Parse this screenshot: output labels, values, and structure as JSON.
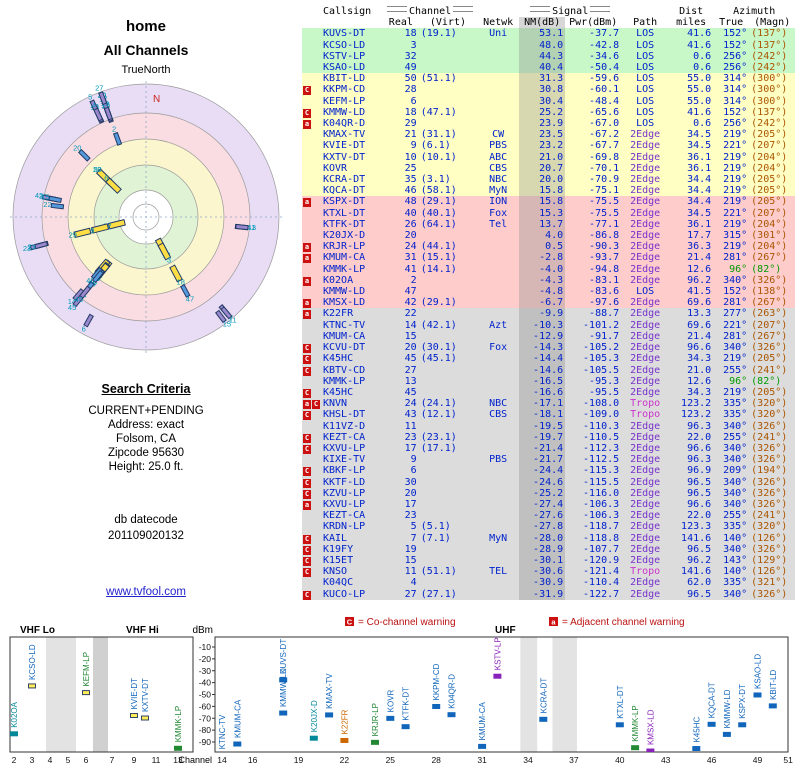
{
  "report": {
    "title": "home",
    "subtitle": "All Channels",
    "true_north": "TrueNorth",
    "north_symbol": "N"
  },
  "search_criteria": {
    "heading": "Search Criteria",
    "lines": [
      "CURRENT+PENDING",
      "Address: exact",
      "Folsom, CA",
      "Zipcode 95630",
      "Height: 25.0 ft."
    ],
    "db_label": "db datecode",
    "db_value": "201109020132"
  },
  "footer_link": "www.tvfool.com",
  "legend": {
    "co_symbol": "C",
    "co_text": "= Co-channel warning",
    "adj_symbol": "a",
    "adj_text": "= Adjacent channel warning"
  },
  "table": {
    "group_headers": {
      "channel": "Channel",
      "signal": "Signal",
      "dist": "Dist",
      "azimuth": "Azimuth"
    },
    "columns": [
      "Callsign",
      "Real",
      "(Virt)",
      "Netwk",
      "NM(dB)",
      "Pwr(dBm)",
      "Path",
      "miles",
      "True",
      "(Magn)"
    ],
    "rows": [
      [
        "",
        "KUVS-DT",
        "18",
        "(19.1)",
        "Uni",
        "53.1",
        "-37.7",
        "LOS",
        "41.6",
        "152°",
        "(137°)",
        "g"
      ],
      [
        "",
        "KCSO-LD",
        "3",
        "",
        "",
        "48.0",
        "-42.8",
        "LOS",
        "41.6",
        "152°",
        "(137°)",
        "g"
      ],
      [
        "",
        "KSTV-LP",
        "32",
        "",
        "",
        "44.3",
        "-34.6",
        "LOS",
        "0.6",
        "256°",
        "(242°)",
        "g"
      ],
      [
        "",
        "KSAO-LD",
        "49",
        "",
        "",
        "40.4",
        "-50.4",
        "LOS",
        "0.6",
        "256°",
        "(242°)",
        "g"
      ],
      [
        "",
        "KBIT-LD",
        "50",
        "(51.1)",
        "",
        "31.3",
        "-59.6",
        "LOS",
        "55.0",
        "314°",
        "(300°)",
        "y"
      ],
      [
        "C",
        "KKPM-CD",
        "28",
        "",
        "",
        "30.8",
        "-60.1",
        "LOS",
        "55.0",
        "314°",
        "(300°)",
        "y"
      ],
      [
        "",
        "KEFM-LP",
        "6",
        "",
        "",
        "30.4",
        "-48.4",
        "LOS",
        "55.0",
        "314°",
        "(300°)",
        "y"
      ],
      [
        "C",
        "KMMW-LD",
        "18",
        "(47.1)",
        "",
        "25.2",
        "-65.6",
        "LOS",
        "41.6",
        "152°",
        "(137°)",
        "y"
      ],
      [
        "a",
        "K04QR-D",
        "29",
        "",
        "",
        "23.9",
        "-67.0",
        "LOS",
        "0.6",
        "256°",
        "(242°)",
        "y"
      ],
      [
        "",
        "KMAX-TV",
        "21",
        "(31.1)",
        "CW",
        "23.5",
        "-67.2",
        "2Edge",
        "34.5",
        "219°",
        "(205°)",
        "y"
      ],
      [
        "",
        "KVIE-DT",
        "9",
        "(6.1)",
        "PBS",
        "23.2",
        "-67.7",
        "2Edge",
        "34.5",
        "221°",
        "(207°)",
        "y"
      ],
      [
        "",
        "KXTV-DT",
        "10",
        "(10.1)",
        "ABC",
        "21.0",
        "-69.8",
        "2Edge",
        "36.1",
        "219°",
        "(204°)",
        "y"
      ],
      [
        "",
        "KOVR",
        "25",
        "",
        "CBS",
        "20.7",
        "-70.1",
        "2Edge",
        "36.1",
        "219°",
        "(204°)",
        "y"
      ],
      [
        "",
        "KCRA-DT",
        "35",
        "(3.1)",
        "NBC",
        "20.0",
        "-70.9",
        "2Edge",
        "34.4",
        "219°",
        "(205°)",
        "y"
      ],
      [
        "",
        "KQCA-DT",
        "46",
        "(58.1)",
        "MyN",
        "15.8",
        "-75.1",
        "2Edge",
        "34.4",
        "219°",
        "(205°)",
        "y"
      ],
      [
        "a",
        "KSPX-DT",
        "48",
        "(29.1)",
        "ION",
        "15.8",
        "-75.5",
        "2Edge",
        "34.4",
        "219°",
        "(205°)",
        "p"
      ],
      [
        "",
        "KTXL-DT",
        "40",
        "(40.1)",
        "Fox",
        "15.3",
        "-75.5",
        "2Edge",
        "34.5",
        "221°",
        "(207°)",
        "p"
      ],
      [
        "",
        "KTFK-DT",
        "26",
        "(64.1)",
        "Tel",
        "13.7",
        "-77.1",
        "2Edge",
        "36.1",
        "219°",
        "(204°)",
        "p"
      ],
      [
        "",
        "K20JX-D",
        "20",
        "",
        "",
        "4.0",
        "-86.8",
        "2Edge",
        "17.7",
        "315°",
        "(301°)",
        "p"
      ],
      [
        "a",
        "KRJR-LP",
        "24",
        "(44.1)",
        "",
        "0.5",
        "-90.3",
        "2Edge",
        "36.3",
        "219°",
        "(204°)",
        "p"
      ],
      [
        "a",
        "KMUM-CA",
        "31",
        "(15.1)",
        "",
        "-2.8",
        "-93.7",
        "2Edge",
        "21.4",
        "281°",
        "(267°)",
        "p"
      ],
      [
        "",
        "KMMK-LP",
        "41",
        "(14.1)",
        "",
        "-4.0",
        "-94.8",
        "2Edge",
        "12.6",
        "96°",
        "(82°)",
        "p"
      ],
      [
        "a",
        "K02OA",
        "2",
        "",
        "",
        "-4.3",
        "-83.1",
        "2Edge",
        "96.2",
        "340°",
        "(326°)",
        "p"
      ],
      [
        "",
        "KMMW-LD",
        "47",
        "",
        "",
        "-4.8",
        "-83.6",
        "LOS",
        "41.5",
        "152°",
        "(138°)",
        "p"
      ],
      [
        "a",
        "KMSX-LD",
        "42",
        "(29.1)",
        "",
        "-6.7",
        "-97.6",
        "2Edge",
        "69.6",
        "281°",
        "(267°)",
        "p"
      ],
      [
        "a",
        "K22FR",
        "22",
        "",
        "",
        "-9.9",
        "-88.7",
        "2Edge",
        "13.3",
        "277°",
        "(263°)",
        "x"
      ],
      [
        "",
        "KTNC-TV",
        "14",
        "(42.1)",
        "Azt",
        "-10.3",
        "-101.2",
        "2Edge",
        "69.6",
        "221°",
        "(207°)",
        "x"
      ],
      [
        "",
        "KMUM-CA",
        "15",
        "",
        "",
        "-12.9",
        "-91.7",
        "2Edge",
        "21.4",
        "281°",
        "(267°)",
        "x"
      ],
      [
        "C",
        "KCVU-DT",
        "20",
        "(30.1)",
        "Fox",
        "-14.3",
        "-105.2",
        "2Edge",
        "96.6",
        "340°",
        "(326°)",
        "x"
      ],
      [
        "C",
        "K45HC",
        "45",
        "(45.1)",
        "",
        "-14.4",
        "-105.3",
        "2Edge",
        "34.3",
        "219°",
        "(205°)",
        "x"
      ],
      [
        "C",
        "KBTV-CD",
        "27",
        "",
        "",
        "-14.6",
        "-105.5",
        "2Edge",
        "21.0",
        "255°",
        "(241°)",
        "x"
      ],
      [
        "",
        "KMMK-LP",
        "13",
        "",
        "",
        "-16.5",
        "-95.3",
        "2Edge",
        "12.6",
        "96°",
        "(82°)",
        "x"
      ],
      [
        "C",
        "K45HC",
        "45",
        "",
        "",
        "-16.6",
        "-95.5",
        "2Edge",
        "34.3",
        "219°",
        "(205°)",
        "x"
      ],
      [
        "aC",
        "KNVN",
        "24",
        "(24.1)",
        "NBC",
        "-17.1",
        "-108.0",
        "Tropo",
        "123.2",
        "335°",
        "(320°)",
        "x"
      ],
      [
        "C",
        "KHSL-DT",
        "43",
        "(12.1)",
        "CBS",
        "-18.1",
        "-109.0",
        "Tropo",
        "123.2",
        "335°",
        "(320°)",
        "x"
      ],
      [
        "",
        "K11VZ-D",
        "11",
        "",
        "",
        "-19.5",
        "-110.3",
        "2Edge",
        "96.3",
        "340°",
        "(326°)",
        "x"
      ],
      [
        "C",
        "KEZT-CA",
        "23",
        "(23.1)",
        "",
        "-19.7",
        "-110.5",
        "2Edge",
        "22.0",
        "255°",
        "(241°)",
        "x"
      ],
      [
        "C",
        "KXVU-LP",
        "17",
        "(17.1)",
        "",
        "-21.4",
        "-112.3",
        "2Edge",
        "96.6",
        "340°",
        "(326°)",
        "x"
      ],
      [
        "",
        "KIXE-TV",
        "9",
        "",
        "PBS",
        "-21.7",
        "-112.5",
        "2Edge",
        "96.3",
        "340°",
        "(326°)",
        "x"
      ],
      [
        "C",
        "KBKF-LP",
        "6",
        "",
        "",
        "-24.4",
        "-115.3",
        "2Edge",
        "96.9",
        "209°",
        "(194°)",
        "x"
      ],
      [
        "C",
        "KKTF-LD",
        "30",
        "",
        "",
        "-24.6",
        "-115.5",
        "2Edge",
        "96.5",
        "340°",
        "(326°)",
        "x"
      ],
      [
        "C",
        "KZVU-LP",
        "20",
        "",
        "",
        "-25.2",
        "-116.0",
        "2Edge",
        "96.5",
        "340°",
        "(326°)",
        "x"
      ],
      [
        "a",
        "KXVU-LP",
        "17",
        "",
        "",
        "-27.4",
        "-106.3",
        "2Edge",
        "96.6",
        "340°",
        "(326°)",
        "x"
      ],
      [
        "",
        "KEZT-CA",
        "23",
        "",
        "",
        "-27.6",
        "-106.3",
        "2Edge",
        "22.0",
        "255°",
        "(241°)",
        "x"
      ],
      [
        "",
        "KRDN-LP",
        "5",
        "(5.1)",
        "",
        "-27.8",
        "-118.7",
        "2Edge",
        "123.3",
        "335°",
        "(320°)",
        "x"
      ],
      [
        "C",
        "KAIL",
        "7",
        "(7.1)",
        "MyN",
        "-28.0",
        "-118.8",
        "2Edge",
        "141.6",
        "140°",
        "(126°)",
        "x"
      ],
      [
        "C",
        "K19FY",
        "19",
        "",
        "",
        "-28.9",
        "-107.7",
        "2Edge",
        "96.5",
        "340°",
        "(326°)",
        "x"
      ],
      [
        "C",
        "K15ET",
        "15",
        "",
        "",
        "-30.1",
        "-120.9",
        "2Edge",
        "96.2",
        "143°",
        "(129°)",
        "x"
      ],
      [
        "C",
        "KNSO",
        "11",
        "(51.1)",
        "TEL",
        "-30.6",
        "-121.4",
        "Tropo",
        "141.6",
        "140°",
        "(126°)",
        "x"
      ],
      [
        "",
        "K04QC",
        "4",
        "",
        "",
        "-30.9",
        "-110.4",
        "2Edge",
        "62.0",
        "335°",
        "(321°)",
        "x"
      ],
      [
        "C",
        "KUCO-LP",
        "27",
        "(27.1)",
        "",
        "-31.9",
        "-122.7",
        "2Edge",
        "96.5",
        "340°",
        "(326°)",
        "x"
      ]
    ]
  },
  "chart_data": [
    {
      "type": "scatter-polar",
      "name": "azimuth-signal-radar",
      "title": "home - All Channels",
      "angle": "true azimuth degrees (N up, clockwise)",
      "radius": "signal power dBm, stronger toward center",
      "rings": [
        {
          "r": 133,
          "fill": "#e9dcf5"
        },
        {
          "r": 104,
          "fill": "#fadde2"
        },
        {
          "r": 78,
          "fill": "#fbf6cd"
        },
        {
          "r": 52,
          "fill": "#e1f3d5"
        },
        {
          "r": 27,
          "fill": "#ffffff"
        },
        {
          "r": 13,
          "fill": "none"
        }
      ],
      "points": [
        [
          18,
          152,
          -37.7
        ],
        [
          3,
          152,
          -42.8
        ],
        [
          32,
          256,
          -34.6
        ],
        [
          49,
          256,
          -50.4
        ],
        [
          50,
          314,
          -59.6
        ],
        [
          28,
          314,
          -60.1
        ],
        [
          6,
          314,
          -48.4
        ],
        [
          18,
          152,
          -65.6
        ],
        [
          29,
          256,
          -67.0
        ],
        [
          21,
          219,
          -67.2
        ],
        [
          9,
          221,
          -67.7
        ],
        [
          10,
          219,
          -69.8
        ],
        [
          25,
          219,
          -70.1
        ],
        [
          35,
          219,
          -70.9
        ],
        [
          46,
          219,
          -75.1
        ],
        [
          48,
          219,
          -75.5
        ],
        [
          40,
          221,
          -75.5
        ],
        [
          26,
          219,
          -77.1
        ],
        [
          20,
          315,
          -86.8
        ],
        [
          24,
          219,
          -90.3
        ],
        [
          31,
          281,
          -93.7
        ],
        [
          41,
          96,
          -94.8
        ],
        [
          2,
          340,
          -83.1
        ],
        [
          47,
          152,
          -83.6
        ],
        [
          42,
          281,
          -97.6
        ],
        [
          22,
          277,
          -88.7
        ],
        [
          14,
          221,
          -101.2
        ],
        [
          15,
          281,
          -91.7
        ],
        [
          20,
          340,
          -105.2
        ],
        [
          45,
          219,
          -105.3
        ],
        [
          27,
          255,
          -105.5
        ],
        [
          13,
          96,
          -95.3
        ],
        [
          45,
          219,
          -95.5
        ],
        [
          24,
          335,
          -108.0
        ],
        [
          43,
          335,
          -109.0
        ],
        [
          11,
          340,
          -110.3
        ],
        [
          23,
          255,
          -110.5
        ],
        [
          17,
          340,
          -112.3
        ],
        [
          9,
          340,
          -112.5
        ],
        [
          6,
          209,
          -115.3
        ],
        [
          30,
          340,
          -115.5
        ],
        [
          20,
          340,
          -116.0
        ],
        [
          17,
          340,
          -106.3
        ],
        [
          23,
          255,
          -106.3
        ],
        [
          5,
          335,
          -118.7
        ],
        [
          7,
          140,
          -118.8
        ],
        [
          19,
          340,
          -107.7
        ],
        [
          15,
          143,
          -120.9
        ],
        [
          11,
          140,
          -121.4
        ],
        [
          4,
          335,
          -110.4
        ],
        [
          27,
          340,
          -122.7
        ]
      ]
    },
    {
      "type": "scatter",
      "name": "signal-strength-by-channel",
      "xlabel": "Channel",
      "ylabel": "dBm",
      "ylim": [
        -98,
        -2
      ],
      "y_ticks": [
        -10,
        -20,
        -30,
        -40,
        -50,
        -60,
        -70,
        -80,
        -90
      ],
      "sections": [
        {
          "label": "VHF Lo",
          "channels": [
            2,
            3,
            4,
            5,
            6
          ]
        },
        {
          "label": "VHF Hi",
          "channels": [
            7,
            9,
            11,
            13
          ]
        },
        {
          "label": "UHF",
          "channels": [
            14,
            16,
            19,
            22,
            25,
            28,
            31,
            34,
            37,
            40,
            43,
            46,
            49,
            51
          ]
        }
      ],
      "points": [
        [
          "K02OA",
          2,
          -83.1,
          "#008899",
          0
        ],
        [
          "KCSO-LD",
          3,
          -42.8,
          "#1166bb",
          1
        ],
        [
          "KEFM-LP",
          6,
          -48.4,
          "#228833",
          1
        ],
        [
          "KVIE-DT",
          9,
          -67.7,
          "#1166bb",
          1
        ],
        [
          "KXTV-DT",
          10,
          -69.8,
          "#1166bb",
          1
        ],
        [
          "KMMK-LP",
          13,
          -95.3,
          "#228833",
          0
        ],
        [
          "KTNC-TV",
          14,
          -101.2,
          "#1166bb",
          0
        ],
        [
          "KMUM-CA",
          15,
          -91.7,
          "#1166bb",
          0
        ],
        [
          "KUVS-DT",
          18,
          -37.7,
          "#1166bb",
          0
        ],
        [
          "KMMW-LD",
          18,
          -65.6,
          "#1166bb",
          0
        ],
        [
          "K20JX-D",
          20,
          -86.8,
          "#008899",
          0
        ],
        [
          "KMAX-TV",
          21,
          -67.2,
          "#1166bb",
          0
        ],
        [
          "K22FR",
          22,
          -88.7,
          "#cc6600",
          0
        ],
        [
          "KRJR-LP",
          24,
          -90.3,
          "#228833",
          0
        ],
        [
          "KOVR",
          25,
          -70.1,
          "#1166bb",
          0
        ],
        [
          "KTFK-DT",
          26,
          -77.1,
          "#1166bb",
          0
        ],
        [
          "KKPM-CD",
          28,
          -60.1,
          "#1166bb",
          0
        ],
        [
          "K04QR-D",
          29,
          -67.0,
          "#1166bb",
          0
        ],
        [
          "KMUM-CA",
          31,
          -93.7,
          "#1166bb",
          0
        ],
        [
          "KSTV-LP",
          32,
          -34.6,
          "#8822bb",
          0
        ],
        [
          "KCRA-DT",
          35,
          -70.9,
          "#1166bb",
          0
        ],
        [
          "KTXL-DT",
          40,
          -75.5,
          "#1166bb",
          0
        ],
        [
          "KMMK-LP",
          41,
          -94.8,
          "#228833",
          0
        ],
        [
          "KMSX-LD",
          42,
          -97.6,
          "#8822bb",
          0
        ],
        [
          "K45HC",
          45,
          -95.5,
          "#1166bb",
          0
        ],
        [
          "KQCA-DT",
          46,
          -75.1,
          "#1166bb",
          0
        ],
        [
          "KMMW-LD",
          47,
          -83.6,
          "#1166bb",
          0
        ],
        [
          "KSPX-DT",
          48,
          -75.5,
          "#1166bb",
          0
        ],
        [
          "KSAO-LD",
          49,
          -50.4,
          "#1166bb",
          0
        ],
        [
          "KBIT-LD",
          50,
          -59.6,
          "#1166bb",
          0
        ]
      ]
    }
  ]
}
